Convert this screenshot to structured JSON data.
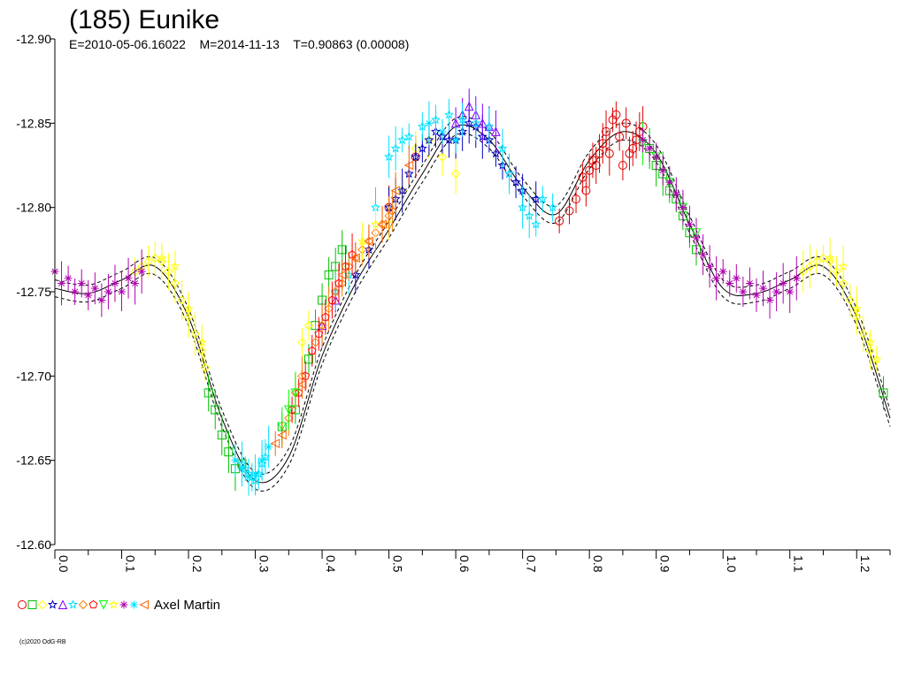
{
  "chart_data": {
    "type": "scatter",
    "title": "(185) Eunike",
    "subtitle": "E=2010-05-06.16022    M=2014-11-13    T=0.90863 (0.00008)",
    "xlabel": "",
    "ylabel": "",
    "xlim": [
      0.0,
      1.25
    ],
    "ylim": [
      -12.9,
      -12.6
    ],
    "y_inverted": true,
    "grid": false,
    "x_ticks": [
      "0.0",
      "0.1",
      "0.2",
      "0.3",
      "0.4",
      "0.5",
      "0.6",
      "0.7",
      "0.8",
      "0.9",
      "1.0",
      "1.1",
      "1.2"
    ],
    "y_ticks": [
      "-12.90",
      "-12.85",
      "-12.80",
      "-12.75",
      "-12.70",
      "-12.65",
      "-12.60"
    ],
    "model_curve": {
      "style": "solid-with-dashed-envelope",
      "x": [
        0.0,
        0.05,
        0.1,
        0.15,
        0.2,
        0.25,
        0.3,
        0.35,
        0.4,
        0.45,
        0.5,
        0.55,
        0.6,
        0.65,
        0.7,
        0.75,
        0.8,
        0.85,
        0.9,
        0.95,
        1.0,
        1.05,
        1.1,
        1.15,
        1.2,
        1.25
      ],
      "y": [
        -12.752,
        -12.749,
        -12.757,
        -12.765,
        -12.735,
        -12.675,
        -12.638,
        -12.652,
        -12.712,
        -12.755,
        -12.787,
        -12.82,
        -12.848,
        -12.84,
        -12.812,
        -12.796,
        -12.828,
        -12.845,
        -12.832,
        -12.79,
        -12.752,
        -12.749,
        -12.757,
        -12.765,
        -12.735,
        -12.675
      ],
      "envelope": 0.005
    },
    "series": [
      {
        "name": "s1",
        "color": "#e00000",
        "marker": "circle",
        "points": [
          [
            0.755,
            -12.792
          ],
          [
            0.77,
            -12.798
          ],
          [
            0.78,
            -12.805
          ],
          [
            0.79,
            -12.818
          ],
          [
            0.795,
            -12.81
          ],
          [
            0.8,
            -12.822
          ],
          [
            0.805,
            -12.828
          ],
          [
            0.81,
            -12.825
          ],
          [
            0.815,
            -12.832
          ],
          [
            0.82,
            -12.838
          ],
          [
            0.825,
            -12.845
          ],
          [
            0.83,
            -12.832
          ],
          [
            0.835,
            -12.852
          ],
          [
            0.84,
            -12.855
          ],
          [
            0.845,
            -12.842
          ],
          [
            0.85,
            -12.825
          ],
          [
            0.855,
            -12.85
          ],
          [
            0.86,
            -12.832
          ],
          [
            0.865,
            -12.835
          ],
          [
            0.87,
            -12.84
          ],
          [
            0.875,
            -12.845
          ],
          [
            0.88,
            -12.848
          ],
          [
            0.54,
            -12.83
          ],
          [
            0.5,
            -12.8
          ]
        ]
      },
      {
        "name": "s2",
        "color": "#00c000",
        "marker": "square",
        "points": [
          [
            0.23,
            -12.69
          ],
          [
            0.24,
            -12.68
          ],
          [
            0.25,
            -12.665
          ],
          [
            0.26,
            -12.655
          ],
          [
            0.27,
            -12.645
          ],
          [
            0.28,
            -12.648
          ],
          [
            0.34,
            -12.67
          ],
          [
            0.36,
            -12.68
          ],
          [
            0.38,
            -12.71
          ],
          [
            0.39,
            -12.73
          ],
          [
            0.4,
            -12.745
          ],
          [
            0.41,
            -12.76
          ],
          [
            0.42,
            -12.765
          ],
          [
            0.43,
            -12.775
          ],
          [
            0.89,
            -12.835
          ],
          [
            0.9,
            -12.825
          ],
          [
            0.91,
            -12.82
          ],
          [
            0.92,
            -12.81
          ],
          [
            0.93,
            -12.805
          ],
          [
            0.94,
            -12.795
          ],
          [
            0.95,
            -12.785
          ],
          [
            0.96,
            -12.775
          ],
          [
            1.24,
            -12.69
          ]
        ]
      },
      {
        "name": "s3",
        "color": "#ffff00",
        "marker": "diamond",
        "points": [
          [
            0.12,
            -12.762
          ],
          [
            0.13,
            -12.765
          ],
          [
            0.14,
            -12.768
          ],
          [
            0.15,
            -12.77
          ],
          [
            0.16,
            -12.768
          ],
          [
            0.17,
            -12.762
          ],
          [
            0.18,
            -12.755
          ],
          [
            0.19,
            -12.745
          ],
          [
            0.2,
            -12.735
          ],
          [
            0.21,
            -12.725
          ],
          [
            0.22,
            -12.715
          ],
          [
            0.225,
            -12.705
          ],
          [
            0.37,
            -12.72
          ],
          [
            0.38,
            -12.73
          ],
          [
            0.5,
            -12.79
          ],
          [
            0.52,
            -12.81
          ],
          [
            0.54,
            -12.835
          ],
          [
            0.56,
            -12.84
          ],
          [
            0.58,
            -12.83
          ],
          [
            0.6,
            -12.82
          ],
          [
            1.12,
            -12.762
          ],
          [
            1.13,
            -12.765
          ],
          [
            1.14,
            -12.768
          ],
          [
            1.15,
            -12.77
          ],
          [
            1.16,
            -12.768
          ],
          [
            1.17,
            -12.762
          ],
          [
            1.18,
            -12.755
          ],
          [
            1.19,
            -12.745
          ],
          [
            1.2,
            -12.735
          ],
          [
            1.21,
            -12.725
          ],
          [
            1.22,
            -12.715
          ]
        ]
      },
      {
        "name": "s4",
        "color": "#0000c0",
        "marker": "star",
        "points": [
          [
            0.5,
            -12.8
          ],
          [
            0.51,
            -12.805
          ],
          [
            0.52,
            -12.81
          ],
          [
            0.53,
            -12.82
          ],
          [
            0.54,
            -12.83
          ],
          [
            0.55,
            -12.835
          ],
          [
            0.56,
            -12.84
          ],
          [
            0.57,
            -12.845
          ],
          [
            0.58,
            -12.842
          ],
          [
            0.59,
            -12.84
          ],
          [
            0.6,
            -12.84
          ],
          [
            0.61,
            -12.845
          ],
          [
            0.62,
            -12.85
          ],
          [
            0.63,
            -12.848
          ],
          [
            0.64,
            -12.842
          ],
          [
            0.65,
            -12.84
          ],
          [
            0.66,
            -12.832
          ],
          [
            0.67,
            -12.825
          ],
          [
            0.68,
            -12.82
          ],
          [
            0.69,
            -12.815
          ],
          [
            0.7,
            -12.81
          ],
          [
            0.72,
            -12.805
          ],
          [
            0.45,
            -12.76
          ],
          [
            0.47,
            -12.775
          ]
        ]
      },
      {
        "name": "s5",
        "color": "#8000ff",
        "marker": "triangle",
        "points": [
          [
            0.6,
            -12.85
          ],
          [
            0.61,
            -12.855
          ],
          [
            0.62,
            -12.86
          ],
          [
            0.63,
            -12.855
          ],
          [
            0.64,
            -12.85
          ],
          [
            0.65,
            -12.848
          ],
          [
            0.66,
            -12.845
          ],
          [
            0.4,
            -12.73
          ],
          [
            0.42,
            -12.745
          ]
        ]
      },
      {
        "name": "s6",
        "color": "#00e0ff",
        "marker": "star",
        "points": [
          [
            0.28,
            -12.648
          ],
          [
            0.285,
            -12.645
          ],
          [
            0.29,
            -12.642
          ],
          [
            0.295,
            -12.64
          ],
          [
            0.3,
            -12.638
          ],
          [
            0.305,
            -12.642
          ],
          [
            0.31,
            -12.648
          ],
          [
            0.315,
            -12.652
          ],
          [
            0.42,
            -12.75
          ],
          [
            0.44,
            -12.76
          ],
          [
            0.48,
            -12.8
          ],
          [
            0.5,
            -12.83
          ],
          [
            0.51,
            -12.835
          ],
          [
            0.52,
            -12.84
          ],
          [
            0.53,
            -12.842
          ],
          [
            0.55,
            -12.848
          ],
          [
            0.57,
            -12.852
          ],
          [
            0.59,
            -12.855
          ],
          [
            0.61,
            -12.852
          ],
          [
            0.63,
            -12.85
          ],
          [
            0.65,
            -12.848
          ],
          [
            0.67,
            -12.835
          ],
          [
            0.68,
            -12.82
          ],
          [
            0.7,
            -12.8
          ],
          [
            0.71,
            -12.795
          ],
          [
            0.72,
            -12.79
          ],
          [
            0.73,
            -12.805
          ],
          [
            0.745,
            -12.8
          ]
        ]
      },
      {
        "name": "s7",
        "color": "#ff8000",
        "marker": "diamond",
        "points": [
          [
            0.35,
            -12.675
          ],
          [
            0.36,
            -12.69
          ],
          [
            0.37,
            -12.7
          ],
          [
            0.39,
            -12.72
          ],
          [
            0.4,
            -12.73
          ],
          [
            0.41,
            -12.74
          ],
          [
            0.42,
            -12.75
          ],
          [
            0.43,
            -12.755
          ],
          [
            0.44,
            -12.765
          ],
          [
            0.45,
            -12.77
          ],
          [
            0.46,
            -12.775
          ],
          [
            0.47,
            -12.78
          ],
          [
            0.48,
            -12.785
          ],
          [
            0.49,
            -12.79
          ],
          [
            0.5,
            -12.795
          ],
          [
            0.505,
            -12.798
          ]
        ]
      },
      {
        "name": "s8",
        "color": "#ff0000",
        "marker": "pentagon",
        "points": [
          [
            0.355,
            -12.68
          ],
          [
            0.365,
            -12.69
          ],
          [
            0.375,
            -12.7
          ],
          [
            0.385,
            -12.715
          ],
          [
            0.395,
            -12.725
          ],
          [
            0.405,
            -12.735
          ],
          [
            0.415,
            -12.745
          ],
          [
            0.425,
            -12.755
          ],
          [
            0.435,
            -12.765
          ],
          [
            0.445,
            -12.772
          ]
        ]
      },
      {
        "name": "s9",
        "color": "#00ff00",
        "marker": "triangle-down",
        "points": [
          [
            0.34,
            -12.67
          ],
          [
            0.35,
            -12.68
          ],
          [
            0.36,
            -12.69
          ],
          [
            0.88,
            -12.838
          ],
          [
            0.9,
            -12.83
          ],
          [
            0.92,
            -12.815
          ],
          [
            0.94,
            -12.8
          ],
          [
            0.96,
            -12.785
          ]
        ]
      },
      {
        "name": "s10",
        "color": "#ffff00",
        "marker": "star",
        "points": [
          [
            0.16,
            -12.77
          ],
          [
            0.18,
            -12.765
          ],
          [
            0.2,
            -12.74
          ],
          [
            0.22,
            -12.72
          ],
          [
            0.46,
            -12.78
          ],
          [
            0.48,
            -12.79
          ],
          [
            1.16,
            -12.77
          ],
          [
            1.18,
            -12.765
          ],
          [
            1.2,
            -12.74
          ],
          [
            1.22,
            -12.72
          ],
          [
            1.23,
            -12.71
          ]
        ]
      },
      {
        "name": "s11",
        "color": "#b000b0",
        "marker": "asterisk",
        "points": [
          [
            0.0,
            -12.762
          ],
          [
            0.01,
            -12.755
          ],
          [
            0.02,
            -12.758
          ],
          [
            0.03,
            -12.75
          ],
          [
            0.04,
            -12.755
          ],
          [
            0.05,
            -12.748
          ],
          [
            0.06,
            -12.752
          ],
          [
            0.07,
            -12.745
          ],
          [
            0.08,
            -12.75
          ],
          [
            0.09,
            -12.755
          ],
          [
            0.1,
            -12.75
          ],
          [
            0.11,
            -12.758
          ],
          [
            0.12,
            -12.755
          ],
          [
            0.13,
            -12.762
          ],
          [
            0.88,
            -12.84
          ],
          [
            0.89,
            -12.835
          ],
          [
            0.9,
            -12.83
          ],
          [
            0.91,
            -12.822
          ],
          [
            0.92,
            -12.815
          ],
          [
            0.93,
            -12.808
          ],
          [
            0.94,
            -12.8
          ],
          [
            0.95,
            -12.79
          ],
          [
            0.96,
            -12.782
          ],
          [
            0.97,
            -12.772
          ],
          [
            0.98,
            -12.765
          ],
          [
            0.99,
            -12.758
          ],
          [
            1.0,
            -12.762
          ],
          [
            1.01,
            -12.755
          ],
          [
            1.02,
            -12.758
          ],
          [
            1.03,
            -12.75
          ],
          [
            1.04,
            -12.755
          ],
          [
            1.05,
            -12.748
          ],
          [
            1.06,
            -12.752
          ],
          [
            1.07,
            -12.745
          ],
          [
            1.08,
            -12.75
          ],
          [
            1.09,
            -12.755
          ],
          [
            1.1,
            -12.75
          ],
          [
            1.11,
            -12.758
          ]
        ]
      },
      {
        "name": "s12",
        "color": "#00e0ff",
        "marker": "asterisk",
        "points": [
          [
            0.27,
            -12.65
          ],
          [
            0.28,
            -12.645
          ],
          [
            0.29,
            -12.64
          ],
          [
            0.3,
            -12.642
          ],
          [
            0.31,
            -12.65
          ],
          [
            0.32,
            -12.658
          ],
          [
            0.56,
            -12.85
          ],
          [
            0.58,
            -12.845
          ],
          [
            0.6,
            -12.84
          ]
        ]
      },
      {
        "name": "s13",
        "color": "#ff6000",
        "marker": "triangle-left",
        "points": [
          [
            0.33,
            -12.66
          ],
          [
            0.34,
            -12.665
          ],
          [
            0.37,
            -12.695
          ],
          [
            0.43,
            -12.76
          ],
          [
            0.45,
            -12.77
          ],
          [
            0.47,
            -12.78
          ],
          [
            0.49,
            -12.79
          ],
          [
            0.51,
            -12.81
          ],
          [
            0.53,
            -12.825
          ]
        ]
      }
    ],
    "legend": {
      "placement": "bottom-left",
      "label": "Axel Martin",
      "markers": [
        {
          "color": "#e00000",
          "marker": "circle"
        },
        {
          "color": "#00c000",
          "marker": "square"
        },
        {
          "color": "#ffff00",
          "marker": "diamond"
        },
        {
          "color": "#0000c0",
          "marker": "star"
        },
        {
          "color": "#8000ff",
          "marker": "triangle"
        },
        {
          "color": "#00e0ff",
          "marker": "star"
        },
        {
          "color": "#ff8000",
          "marker": "diamond"
        },
        {
          "color": "#ff0000",
          "marker": "pentagon"
        },
        {
          "color": "#00ff00",
          "marker": "triangle-down"
        },
        {
          "color": "#ffff00",
          "marker": "star"
        },
        {
          "color": "#b000b0",
          "marker": "asterisk"
        },
        {
          "color": "#00e0ff",
          "marker": "asterisk"
        },
        {
          "color": "#ff6000",
          "marker": "triangle-left"
        }
      ]
    },
    "credit": "(c)2020 OdG-RB"
  }
}
